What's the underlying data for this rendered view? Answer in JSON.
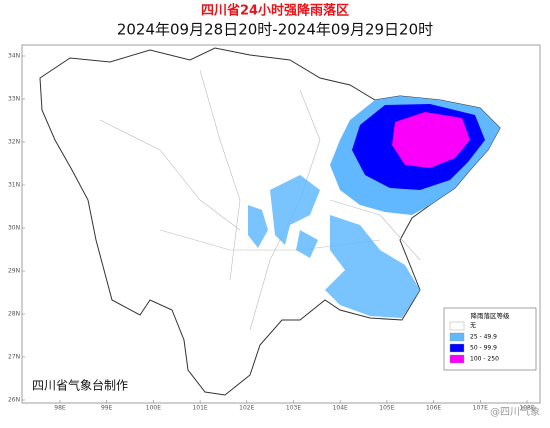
{
  "header": {
    "title": "四川省24小时强降雨落区",
    "subtitle": "2024年09月28日20时-2024年09月29日20时"
  },
  "axes": {
    "latitude_labels": [
      "34N",
      "33N",
      "32N",
      "31N",
      "30N",
      "29N",
      "28N",
      "27N",
      "26N"
    ],
    "longitude_labels": [
      "98E",
      "99E",
      "100E",
      "101E",
      "102E",
      "103E",
      "104E",
      "105E",
      "106E",
      "107E",
      "108E"
    ]
  },
  "legend": {
    "title": "降雨落区等级",
    "items": [
      {
        "label": "无",
        "color": "#ffffff"
      },
      {
        "label": "25 - 49.9",
        "color": "#61b8ff"
      },
      {
        "label": "50 - 99.9",
        "color": "#0000fe"
      },
      {
        "label": "100 - 250",
        "color": "#fa00fa"
      }
    ]
  },
  "credit": "四川省气象台制作",
  "watermark": "@四川气象"
}
